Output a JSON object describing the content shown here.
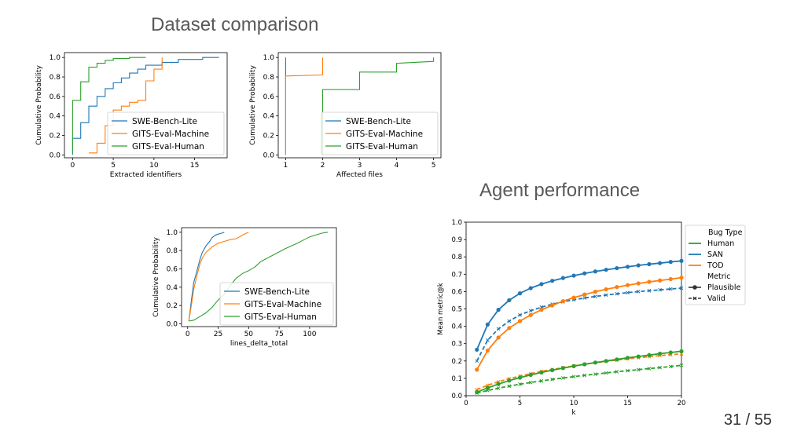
{
  "slide": {
    "title_dataset": "Dataset comparison",
    "title_agent": "Agent performance",
    "page_number": "31 / 55"
  },
  "colors": {
    "blue": "#1f77b4",
    "orange": "#ff7f0e",
    "green": "#2ca02c"
  },
  "chart_data": [
    {
      "type": "line",
      "xlabel": "Extracted identifiers",
      "ylabel": "Cumulative Probability",
      "xlim": [
        -1,
        19
      ],
      "ylim": [
        -0.03,
        1.05
      ],
      "xticks": [
        0,
        5,
        10,
        15
      ],
      "yticks": [
        0.0,
        0.2,
        0.4,
        0.6,
        0.8,
        1.0
      ],
      "legend": "lower-right",
      "series": [
        {
          "name": "SWE-Bench-Lite",
          "color": "#1f77b4",
          "x": [
            0,
            0,
            1,
            1,
            2,
            2,
            3,
            3,
            4,
            4,
            5,
            5,
            6,
            6,
            7,
            7,
            8,
            8,
            9,
            9,
            11,
            11,
            13,
            13,
            16,
            16,
            18
          ],
          "y": [
            0,
            0.17,
            0.17,
            0.33,
            0.33,
            0.5,
            0.5,
            0.6,
            0.6,
            0.68,
            0.68,
            0.74,
            0.74,
            0.79,
            0.79,
            0.84,
            0.84,
            0.88,
            0.88,
            0.92,
            0.92,
            0.95,
            0.95,
            0.98,
            0.98,
            1.0,
            1.0
          ]
        },
        {
          "name": "GITS-Eval-Machine",
          "color": "#ff7f0e",
          "x": [
            2,
            3,
            3,
            4,
            4,
            5,
            5,
            6,
            6,
            7,
            7,
            8,
            8,
            9,
            9,
            10,
            10,
            11,
            11
          ],
          "y": [
            0.02,
            0.02,
            0.12,
            0.12,
            0.3,
            0.3,
            0.46,
            0.46,
            0.5,
            0.5,
            0.54,
            0.54,
            0.56,
            0.56,
            0.76,
            0.76,
            0.88,
            0.88,
            1.0
          ]
        },
        {
          "name": "GITS-Eval-Human",
          "color": "#2ca02c",
          "x": [
            0,
            0,
            1,
            1,
            2,
            2,
            3,
            3,
            4,
            4,
            5,
            5,
            7,
            7,
            9
          ],
          "y": [
            0.02,
            0.56,
            0.56,
            0.75,
            0.75,
            0.9,
            0.9,
            0.94,
            0.94,
            0.97,
            0.97,
            0.99,
            0.99,
            1.0,
            1.0
          ]
        }
      ]
    },
    {
      "type": "line",
      "xlabel": "Affected files",
      "ylabel": "Cumulative Probability",
      "xlim": [
        0.8,
        5.2
      ],
      "ylim": [
        -0.03,
        1.05
      ],
      "xticks": [
        1,
        2,
        3,
        4,
        5
      ],
      "yticks": [
        0.0,
        0.2,
        0.4,
        0.6,
        0.8,
        1.0
      ],
      "legend": "lower-right",
      "series": [
        {
          "name": "SWE-Bench-Lite",
          "color": "#1f77b4",
          "x": [
            1,
            1
          ],
          "y": [
            0.0,
            1.0
          ]
        },
        {
          "name": "GITS-Eval-Machine",
          "color": "#ff7f0e",
          "x": [
            1,
            1,
            2,
            2
          ],
          "y": [
            0.0,
            0.81,
            0.82,
            1.0
          ]
        },
        {
          "name": "GITS-Eval-Human",
          "color": "#2ca02c",
          "x": [
            2,
            2,
            3,
            3,
            4,
            4,
            5,
            5
          ],
          "y": [
            0.0,
            0.67,
            0.67,
            0.85,
            0.85,
            0.94,
            0.96,
            1.0
          ]
        }
      ]
    },
    {
      "type": "line",
      "xlabel": "lines_delta_total",
      "ylabel": "Cumulative Probability",
      "xlim": [
        -5,
        122
      ],
      "ylim": [
        -0.03,
        1.05
      ],
      "xticks": [
        0,
        25,
        50,
        75,
        100
      ],
      "yticks": [
        0.0,
        0.2,
        0.4,
        0.6,
        0.8,
        1.0
      ],
      "legend": "lower-right",
      "series": [
        {
          "name": "SWE-Bench-Lite",
          "color": "#1f77b4",
          "x": [
            1,
            3,
            5,
            8,
            10,
            12,
            15,
            18,
            20,
            23,
            25,
            28,
            30
          ],
          "y": [
            0.03,
            0.25,
            0.45,
            0.6,
            0.7,
            0.78,
            0.85,
            0.9,
            0.94,
            0.97,
            0.98,
            0.99,
            1.0
          ]
        },
        {
          "name": "GITS-Eval-Machine",
          "color": "#ff7f0e",
          "x": [
            1,
            3,
            5,
            8,
            10,
            12,
            15,
            20,
            25,
            30,
            35,
            40,
            45,
            50
          ],
          "y": [
            0.03,
            0.2,
            0.38,
            0.55,
            0.65,
            0.72,
            0.78,
            0.84,
            0.88,
            0.9,
            0.92,
            0.93,
            0.97,
            1.0
          ]
        },
        {
          "name": "GITS-Eval-Human",
          "color": "#2ca02c",
          "x": [
            1,
            5,
            10,
            15,
            20,
            25,
            30,
            35,
            40,
            45,
            50,
            55,
            60,
            70,
            80,
            90,
            100,
            110,
            115
          ],
          "y": [
            0.03,
            0.04,
            0.08,
            0.12,
            0.18,
            0.26,
            0.32,
            0.42,
            0.5,
            0.55,
            0.58,
            0.62,
            0.68,
            0.75,
            0.82,
            0.88,
            0.95,
            0.99,
            1.0
          ]
        }
      ]
    },
    {
      "type": "line",
      "xlabel": "k",
      "ylabel": "Mean metric@k",
      "xlim": [
        0,
        20
      ],
      "ylim": [
        0.0,
        1.0
      ],
      "xticks": [
        0,
        5,
        10,
        15,
        20
      ],
      "yticks": [
        0.0,
        0.1,
        0.2,
        0.3,
        0.4,
        0.5,
        0.6,
        0.7,
        0.8,
        0.9,
        1.0
      ],
      "legend": "outside-right",
      "legend_title_1": "Bug Type",
      "legend_title_2": "Metric",
      "legend_entries": [
        "Human",
        "SAN",
        "TOD"
      ],
      "metric_entries": [
        "Plausible",
        "Valid"
      ],
      "k": [
        1,
        2,
        3,
        4,
        5,
        6,
        7,
        8,
        9,
        10,
        11,
        12,
        13,
        14,
        15,
        16,
        17,
        18,
        19,
        20
      ],
      "series": [
        {
          "name": "SAN",
          "metric": "Plausible",
          "color": "#1f77b4",
          "dash": false,
          "values": [
            0.265,
            0.41,
            0.495,
            0.55,
            0.59,
            0.62,
            0.643,
            0.662,
            0.678,
            0.692,
            0.705,
            0.716,
            0.726,
            0.735,
            0.743,
            0.751,
            0.758,
            0.764,
            0.771,
            0.777
          ]
        },
        {
          "name": "SAN",
          "metric": "Valid",
          "color": "#1f77b4",
          "dash": true,
          "values": [
            0.2,
            0.32,
            0.385,
            0.43,
            0.465,
            0.49,
            0.51,
            0.527,
            0.541,
            0.553,
            0.563,
            0.572,
            0.58,
            0.587,
            0.594,
            0.6,
            0.605,
            0.61,
            0.615,
            0.62
          ]
        },
        {
          "name": "TOD",
          "metric": "Plausible",
          "color": "#ff7f0e",
          "dash": false,
          "values": [
            0.15,
            0.26,
            0.335,
            0.39,
            0.43,
            0.465,
            0.495,
            0.52,
            0.545,
            0.565,
            0.583,
            0.599,
            0.613,
            0.626,
            0.637,
            0.647,
            0.656,
            0.664,
            0.672,
            0.68
          ]
        },
        {
          "name": "TOD",
          "metric": "Valid",
          "color": "#ff7f0e",
          "dash": true,
          "values": [
            0.035,
            0.06,
            0.08,
            0.098,
            0.113,
            0.127,
            0.14,
            0.151,
            0.162,
            0.172,
            0.181,
            0.19,
            0.198,
            0.205,
            0.212,
            0.219,
            0.225,
            0.231,
            0.236,
            0.241
          ]
        },
        {
          "name": "Human",
          "metric": "Plausible",
          "color": "#2ca02c",
          "dash": false,
          "values": [
            0.02,
            0.045,
            0.067,
            0.087,
            0.104,
            0.12,
            0.134,
            0.147,
            0.159,
            0.17,
            0.181,
            0.191,
            0.2,
            0.209,
            0.218,
            0.226,
            0.234,
            0.242,
            0.249,
            0.256
          ]
        },
        {
          "name": "Human",
          "metric": "Valid",
          "color": "#2ca02c",
          "dash": true,
          "values": [
            0.015,
            0.03,
            0.043,
            0.055,
            0.066,
            0.076,
            0.085,
            0.094,
            0.102,
            0.11,
            0.117,
            0.124,
            0.131,
            0.138,
            0.144,
            0.15,
            0.156,
            0.162,
            0.168,
            0.175
          ]
        }
      ]
    }
  ]
}
